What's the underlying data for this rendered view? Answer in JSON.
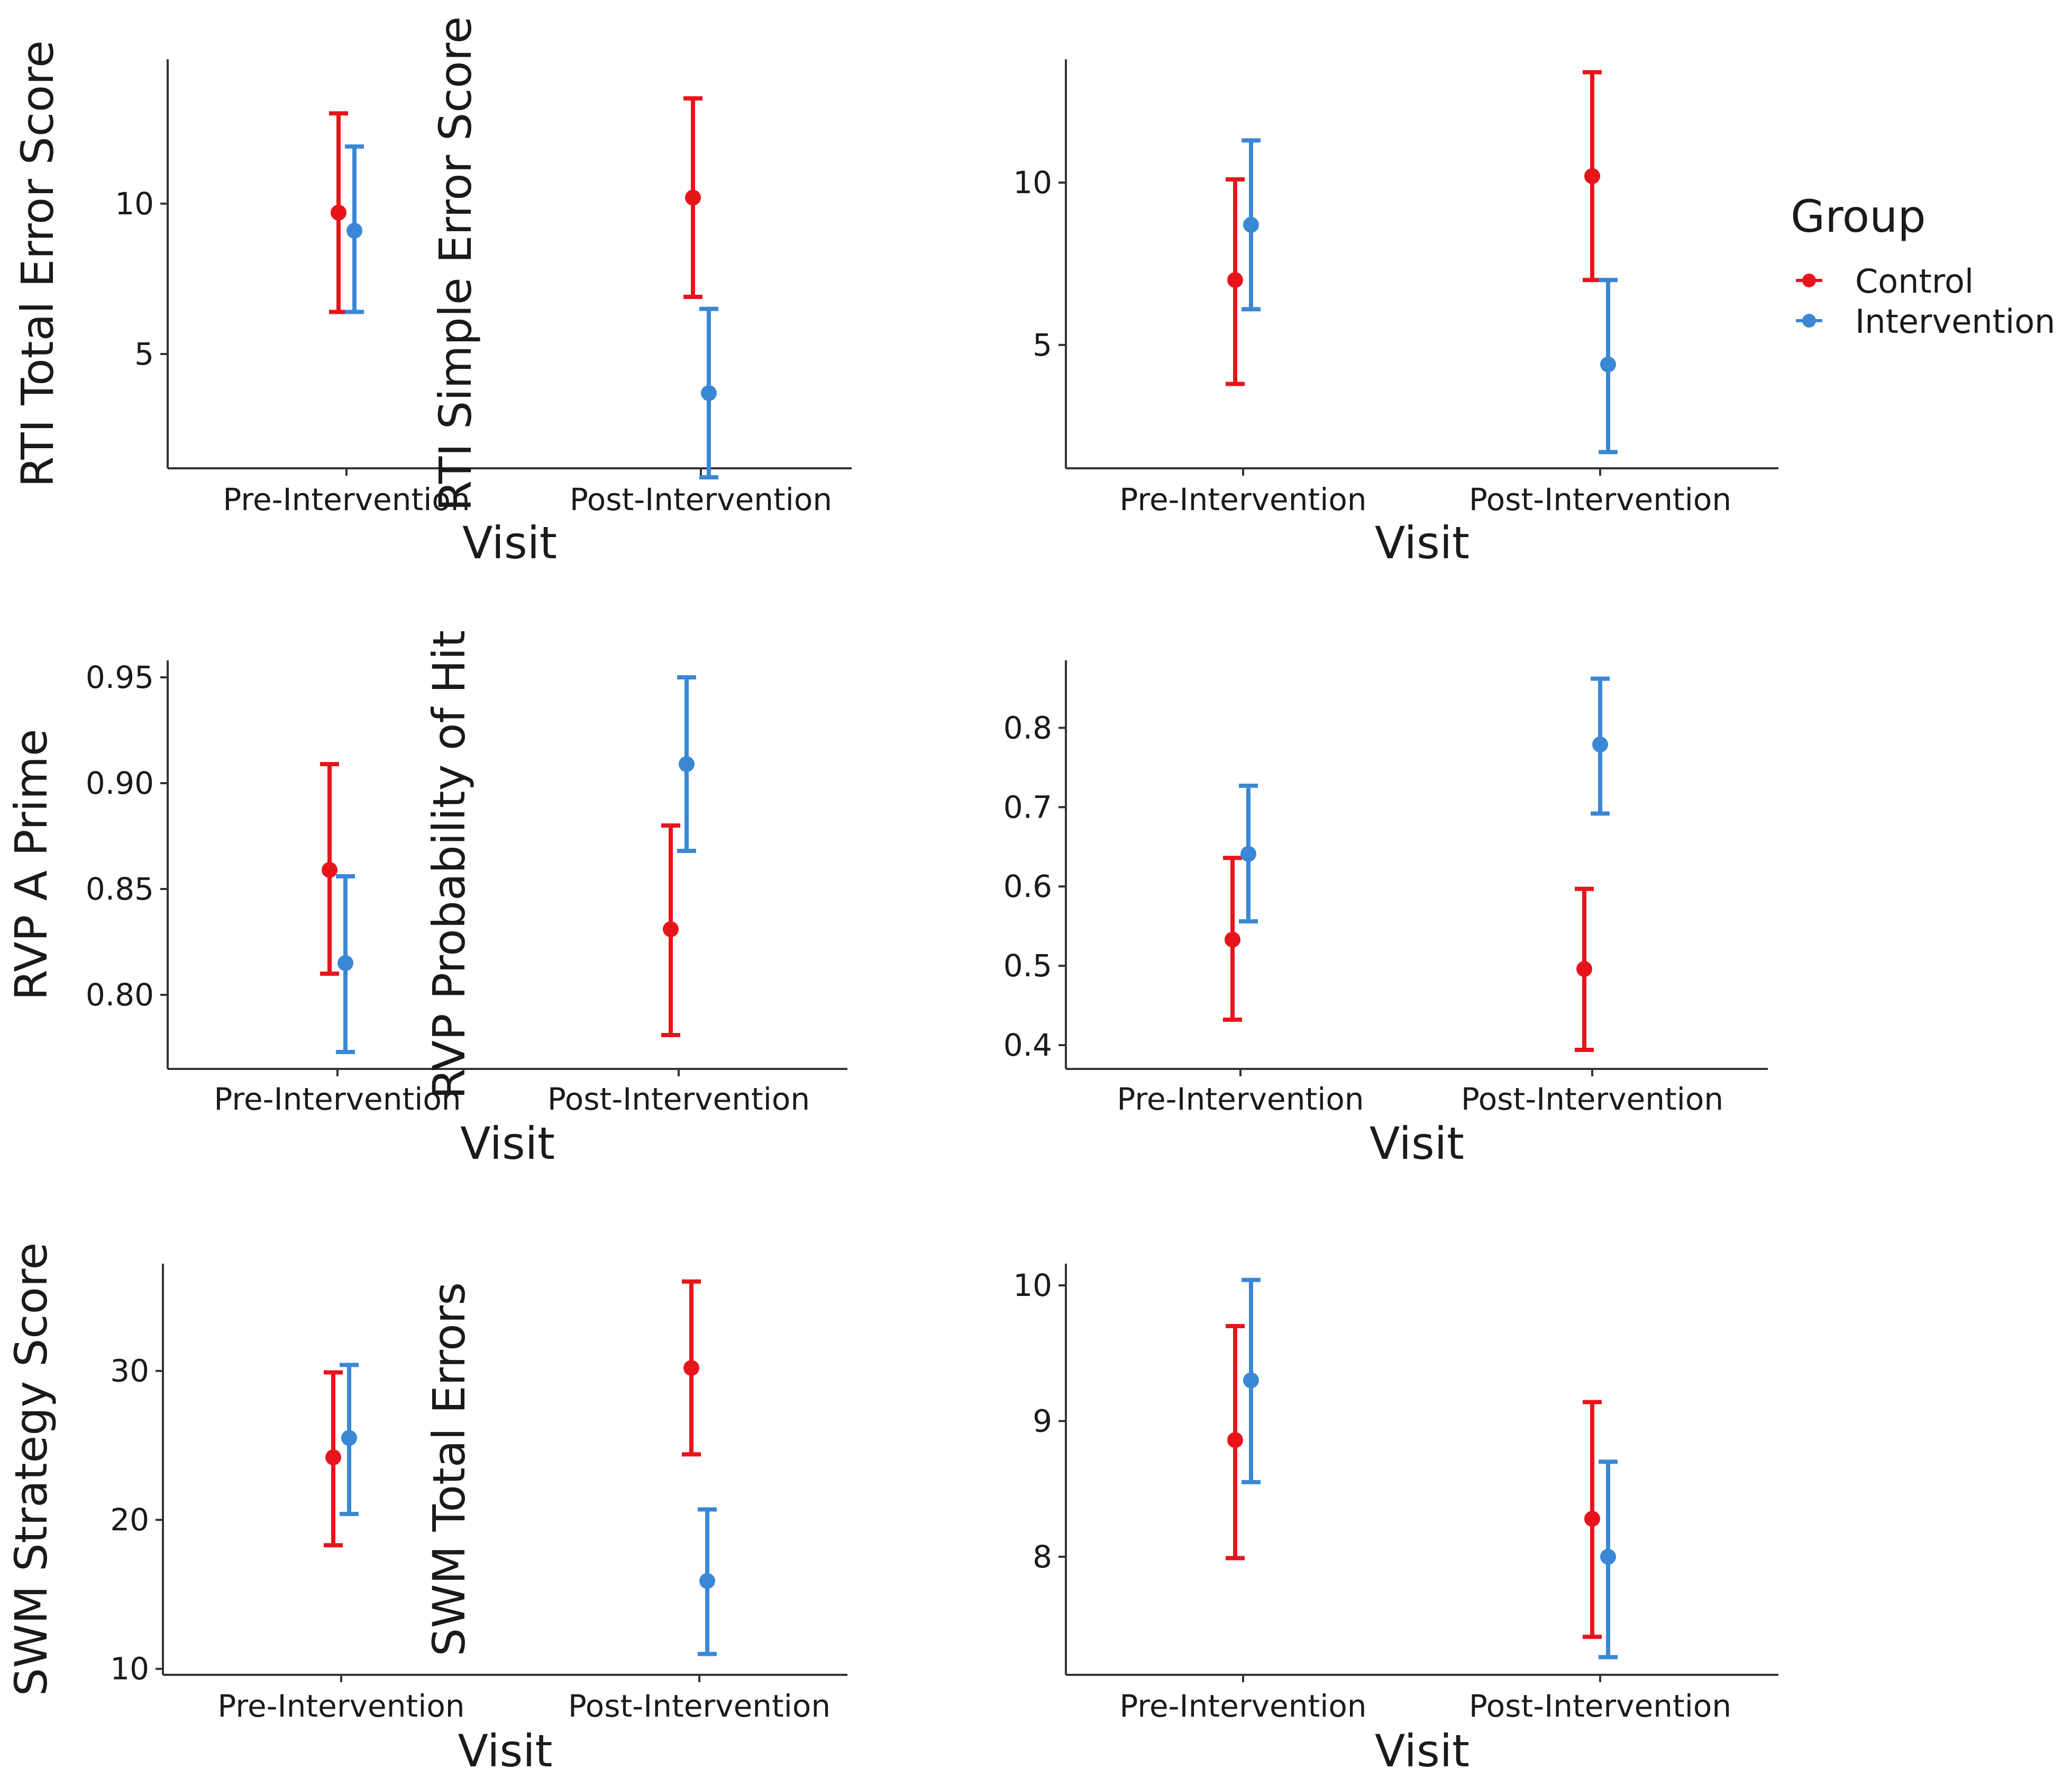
{
  "chart_data": [
    {
      "type": "errorbar",
      "ylabel": "RTI Total Error Score",
      "xlabel": "Visit",
      "categories": [
        "Pre-Intervention",
        "Post-Intervention"
      ],
      "ylim": [
        1.2,
        14.8
      ],
      "yticks": [
        5,
        10
      ],
      "ytick_labels": [
        "5",
        "10"
      ],
      "series": [
        {
          "name": "Control",
          "values": [
            9.7,
            10.2
          ],
          "lower": [
            6.4,
            6.9
          ],
          "upper": [
            13.0,
            13.5
          ]
        },
        {
          "name": "Intervention",
          "values": [
            9.1,
            3.7
          ],
          "lower": [
            6.4,
            0.9
          ],
          "upper": [
            11.9,
            6.5
          ]
        }
      ]
    },
    {
      "type": "errorbar",
      "ylabel": "RTI Simple Error Score",
      "xlabel": "Visit",
      "categories": [
        "Pre-Intervention",
        "Post-Intervention"
      ],
      "ylim": [
        1.2,
        13.8
      ],
      "yticks": [
        5,
        10
      ],
      "ytick_labels": [
        "5",
        "10"
      ],
      "series": [
        {
          "name": "Control",
          "values": [
            7.0,
            10.2
          ],
          "lower": [
            3.8,
            7.0
          ],
          "upper": [
            10.1,
            13.4
          ]
        },
        {
          "name": "Intervention",
          "values": [
            8.7,
            4.4
          ],
          "lower": [
            6.1,
            1.7
          ],
          "upper": [
            11.3,
            7.0
          ]
        }
      ]
    },
    {
      "type": "errorbar",
      "ylabel": "RVP A Prime",
      "xlabel": "Visit",
      "categories": [
        "Pre-Intervention",
        "Post-Intervention"
      ],
      "ylim": [
        0.765,
        0.958
      ],
      "yticks": [
        0.8,
        0.85,
        0.9,
        0.95
      ],
      "ytick_labels": [
        "0.80",
        "0.85",
        "0.90",
        "0.95"
      ],
      "series": [
        {
          "name": "Control",
          "values": [
            0.859,
            0.831
          ],
          "lower": [
            0.81,
            0.781
          ],
          "upper": [
            0.909,
            0.88
          ]
        },
        {
          "name": "Intervention",
          "values": [
            0.815,
            0.909
          ],
          "lower": [
            0.773,
            0.868
          ],
          "upper": [
            0.856,
            0.95
          ]
        }
      ]
    },
    {
      "type": "errorbar",
      "ylabel": "RVP Probability of Hit",
      "xlabel": "Visit",
      "categories": [
        "Pre-Intervention",
        "Post-Intervention"
      ],
      "ylim": [
        0.37,
        0.885
      ],
      "yticks": [
        0.4,
        0.5,
        0.6,
        0.7,
        0.8
      ],
      "ytick_labels": [
        "0.4",
        "0.5",
        "0.6",
        "0.7",
        "0.8"
      ],
      "series": [
        {
          "name": "Control",
          "values": [
            0.533,
            0.496
          ],
          "lower": [
            0.432,
            0.394
          ],
          "upper": [
            0.636,
            0.597
          ]
        },
        {
          "name": "Intervention",
          "values": [
            0.641,
            0.779
          ],
          "lower": [
            0.556,
            0.692
          ],
          "upper": [
            0.727,
            0.862
          ]
        }
      ]
    },
    {
      "type": "errorbar",
      "ylabel": "SWM Strategy Score",
      "xlabel": "Visit",
      "categories": [
        "Pre-Intervention",
        "Post-Intervention"
      ],
      "ylim": [
        9.6,
        37.2
      ],
      "yticks": [
        10,
        20,
        30
      ],
      "ytick_labels": [
        "10",
        "20",
        "30"
      ],
      "series": [
        {
          "name": "Control",
          "values": [
            24.2,
            30.2
          ],
          "lower": [
            18.3,
            24.4
          ],
          "upper": [
            29.9,
            36.0
          ]
        },
        {
          "name": "Intervention",
          "values": [
            25.5,
            15.9
          ],
          "lower": [
            20.4,
            11.0
          ],
          "upper": [
            30.4,
            20.7
          ]
        }
      ]
    },
    {
      "type": "errorbar",
      "ylabel": "SWM Total Errors",
      "xlabel": "Visit",
      "categories": [
        "Pre-Intervention",
        "Post-Intervention"
      ],
      "ylim": [
        7.13,
        10.16
      ],
      "yticks": [
        8,
        9,
        10
      ],
      "ytick_labels": [
        "8",
        "9",
        "10"
      ],
      "series": [
        {
          "name": "Control",
          "values": [
            8.86,
            8.28
          ],
          "lower": [
            7.99,
            7.41
          ],
          "upper": [
            9.7,
            9.14
          ]
        },
        {
          "name": "Intervention",
          "values": [
            9.3,
            8.0
          ],
          "lower": [
            8.55,
            7.26
          ],
          "upper": [
            10.04,
            8.7
          ]
        }
      ]
    }
  ],
  "legend": {
    "title": "Group",
    "entries": [
      {
        "label": "Control",
        "color": "#e8141c"
      },
      {
        "label": "Intervention",
        "color": "#3a87d6"
      }
    ]
  }
}
